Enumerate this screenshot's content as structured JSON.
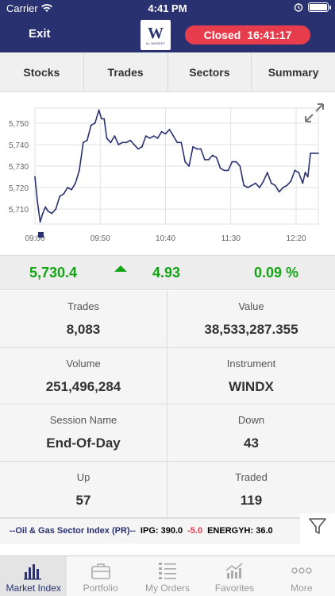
{
  "status_bar": {
    "carrier": "Carrier",
    "time": "4:41 PM"
  },
  "header": {
    "exit_label": "Exit",
    "logo_letter": "W",
    "logo_text": "AL WASEET",
    "market_state": "Closed",
    "market_time": "16:41:17",
    "status_color": "#e63c4b",
    "brand_color": "#2a3171"
  },
  "tabs": [
    {
      "label": "Stocks"
    },
    {
      "label": "Trades"
    },
    {
      "label": "Sectors"
    },
    {
      "label": "Summary"
    }
  ],
  "chart_data": {
    "type": "line",
    "y_ticks": [
      "5,750",
      "5,740",
      "5,730",
      "5,720",
      "5,710"
    ],
    "x_ticks": [
      "09:00",
      "09:50",
      "10:40",
      "11:30",
      "12:20"
    ],
    "ylim": [
      5703,
      5757
    ],
    "x_range": [
      "09:00",
      "12:37"
    ],
    "series": [
      {
        "color": "#2a3171",
        "points": [
          [
            "09:00",
            5725
          ],
          [
            "09:02",
            5713
          ],
          [
            "09:04",
            5704
          ],
          [
            "09:06",
            5708
          ],
          [
            "09:08",
            5711
          ],
          [
            "09:10",
            5709
          ],
          [
            "09:13",
            5708
          ],
          [
            "09:16",
            5710
          ],
          [
            "09:19",
            5716
          ],
          [
            "09:22",
            5717
          ],
          [
            "09:25",
            5720
          ],
          [
            "09:28",
            5719
          ],
          [
            "09:31",
            5722
          ],
          [
            "09:34",
            5728
          ],
          [
            "09:37",
            5741
          ],
          [
            "09:40",
            5742
          ],
          [
            "09:43",
            5749
          ],
          [
            "09:46",
            5750
          ],
          [
            "09:49",
            5756
          ],
          [
            "09:51",
            5752
          ],
          [
            "09:53",
            5752
          ],
          [
            "09:55",
            5743
          ],
          [
            "09:58",
            5741
          ],
          [
            "10:01",
            5744
          ],
          [
            "10:04",
            5740
          ],
          [
            "10:07",
            5741
          ],
          [
            "10:10",
            5741
          ],
          [
            "10:13",
            5742
          ],
          [
            "10:16",
            5740
          ],
          [
            "10:19",
            5738
          ],
          [
            "10:22",
            5739
          ],
          [
            "10:25",
            5744
          ],
          [
            "10:28",
            5743
          ],
          [
            "10:31",
            5744
          ],
          [
            "10:34",
            5743
          ],
          [
            "10:37",
            5746
          ],
          [
            "10:40",
            5745
          ],
          [
            "10:43",
            5747
          ],
          [
            "10:46",
            5744
          ],
          [
            "10:49",
            5741
          ],
          [
            "10:52",
            5741
          ],
          [
            "10:55",
            5732
          ],
          [
            "10:58",
            5730
          ],
          [
            "11:01",
            5739
          ],
          [
            "11:04",
            5738
          ],
          [
            "11:07",
            5738
          ],
          [
            "11:10",
            5733
          ],
          [
            "11:13",
            5733
          ],
          [
            "11:16",
            5735
          ],
          [
            "11:19",
            5734
          ],
          [
            "11:22",
            5729
          ],
          [
            "11:25",
            5728
          ],
          [
            "11:28",
            5728
          ],
          [
            "11:31",
            5732
          ],
          [
            "11:34",
            5732
          ],
          [
            "11:37",
            5730
          ],
          [
            "11:40",
            5721
          ],
          [
            "11:43",
            5720
          ],
          [
            "11:46",
            5721
          ],
          [
            "11:49",
            5722
          ],
          [
            "11:52",
            5720
          ],
          [
            "11:55",
            5723
          ],
          [
            "11:58",
            5727
          ],
          [
            "12:01",
            5722
          ],
          [
            "12:04",
            5721
          ],
          [
            "12:07",
            5718
          ],
          [
            "12:10",
            5720
          ],
          [
            "12:13",
            5721
          ],
          [
            "12:16",
            5723
          ],
          [
            "12:19",
            5728
          ],
          [
            "12:22",
            5727
          ],
          [
            "12:25",
            5722
          ],
          [
            "12:27",
            5727
          ],
          [
            "12:29",
            5725
          ],
          [
            "12:31",
            5736
          ],
          [
            "12:34",
            5736
          ],
          [
            "12:37",
            5736
          ]
        ]
      }
    ],
    "grid": true
  },
  "summary": {
    "index_value": "5,730.4",
    "change": "4.93",
    "change_pct": "0.09 %",
    "positive_color": "#12a512"
  },
  "stats": [
    {
      "label": "Trades",
      "value": "8,083"
    },
    {
      "label": "Value",
      "value": "38,533,287.355"
    },
    {
      "label": "Volume",
      "value": "251,496,284"
    },
    {
      "label": "Instrument",
      "value": "WINDX"
    },
    {
      "label": "Session Name",
      "value": "End-Of-Day"
    },
    {
      "label": "Down",
      "value": "43"
    },
    {
      "label": "Up",
      "value": "57"
    },
    {
      "label": "Traded",
      "value": "119"
    }
  ],
  "ticker": {
    "name": "--Oil & Gas Sector Index (PR)--",
    "item1": "IPG: 390.0",
    "item1_change": "-5.0",
    "item2": "ENERGYH: 36.0"
  },
  "bottom_nav": [
    {
      "label": "Market Index",
      "icon": "bar-chart-icon",
      "active": true
    },
    {
      "label": "Portfolio",
      "icon": "briefcase-icon",
      "active": false
    },
    {
      "label": "My Orders",
      "icon": "list-icon",
      "active": false
    },
    {
      "label": "Favorites",
      "icon": "chart-up-icon",
      "active": false
    },
    {
      "label": "More",
      "icon": "more-icon",
      "active": false
    }
  ]
}
